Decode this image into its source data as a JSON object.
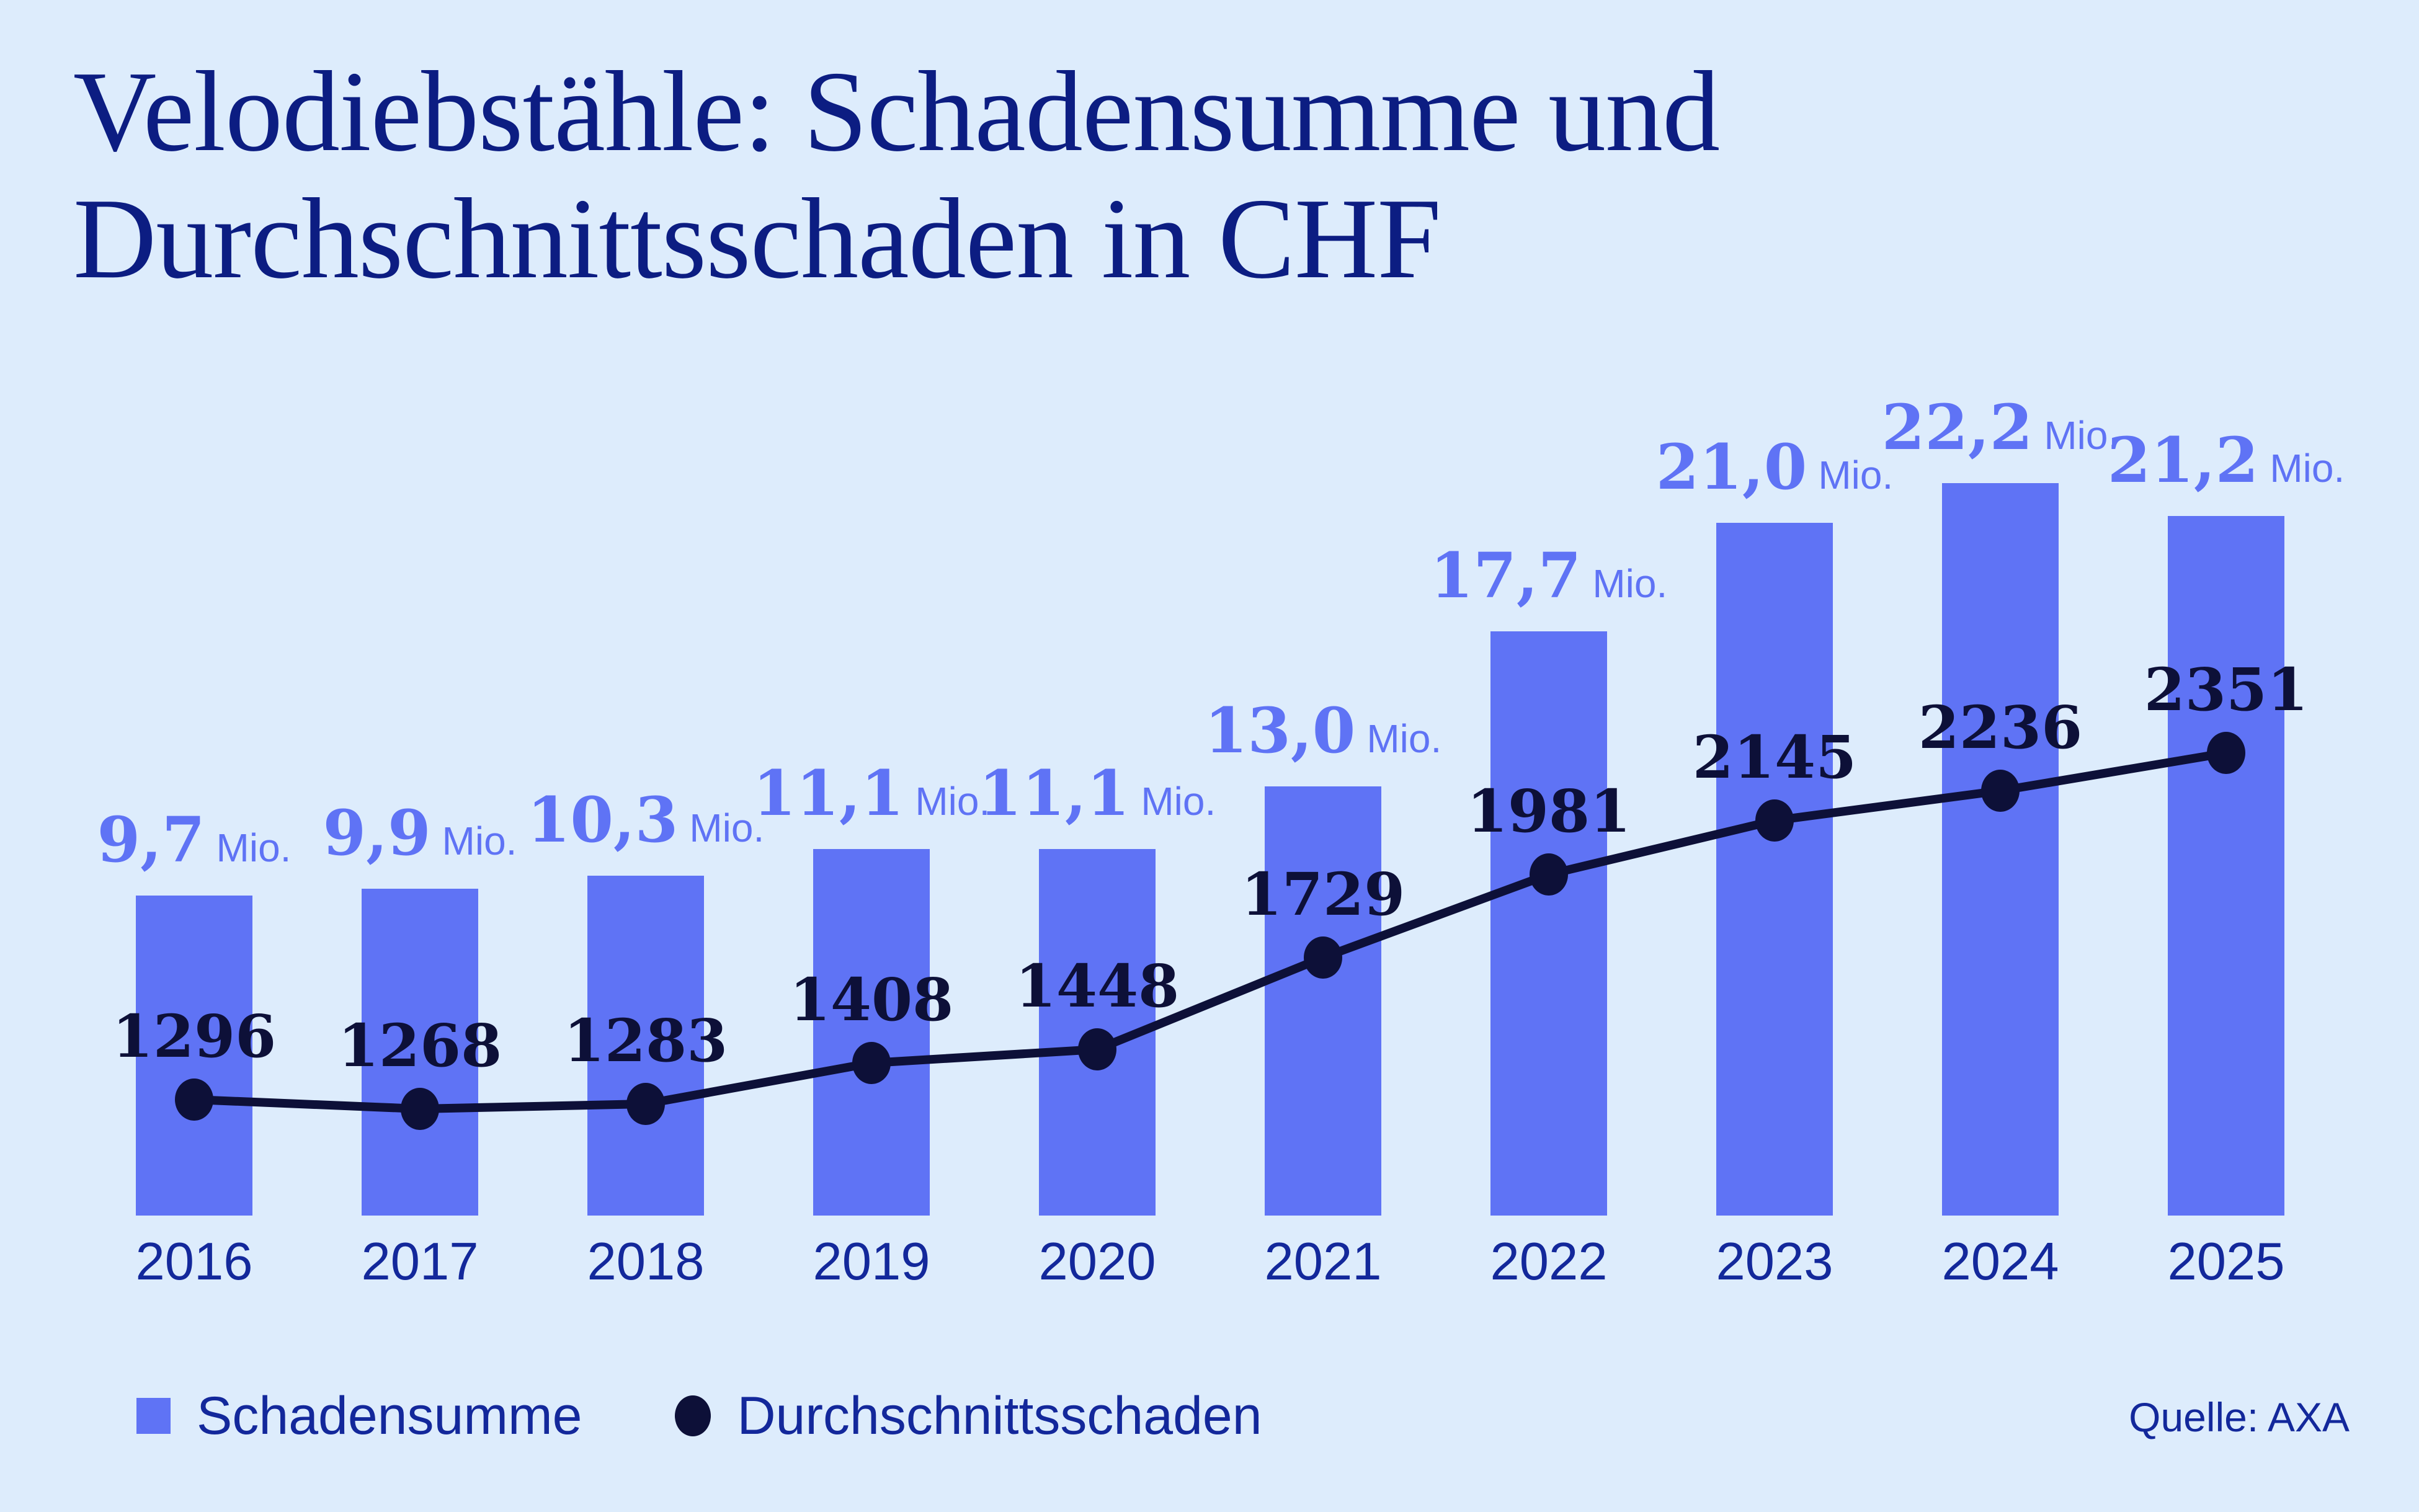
{
  "title": {
    "line1": "Velodiebstähle: Schadensumme und",
    "line2": "Durchschnittsschaden in CHF"
  },
  "source": "Quelle: AXA",
  "legend": {
    "items": [
      {
        "label": "Schadensumme",
        "marker": "bar-swatch"
      },
      {
        "label": "Durchschnittsschaden",
        "marker": "dot"
      }
    ]
  },
  "colors": {
    "background": "#ddecfc",
    "bar": "#5f73f5",
    "line_and_dark_text": "#0d1038",
    "axis_text": "#13289b",
    "title_text": "#0c1d82"
  },
  "chart_data": {
    "type": "bar+line",
    "title": "Velodiebstähle: Schadensumme und Durchschnittsschaden in CHF",
    "categories": [
      "2016",
      "2017",
      "2018",
      "2019",
      "2020",
      "2021",
      "2022",
      "2023",
      "2024",
      "2025"
    ],
    "series": [
      {
        "name": "Schadensumme",
        "type": "bar",
        "unit": "Mio.",
        "unit_position": "suffix",
        "values": [
          9.7,
          9.9,
          10.3,
          11.1,
          11.1,
          13.0,
          17.7,
          21.0,
          22.2,
          21.2
        ],
        "value_labels": [
          "9,7",
          "9,9",
          "10,3",
          "11,1",
          "11,1",
          "13,0",
          "17,7",
          "21,0",
          "22,2",
          "21,2"
        ]
      },
      {
        "name": "Durchschnittsschaden",
        "type": "line",
        "values": [
          1296,
          1268,
          1283,
          1408,
          1448,
          1729,
          1981,
          2145,
          2236,
          2351
        ]
      }
    ],
    "xlabel": "",
    "ylabel": "",
    "grid": false,
    "legend_position": "bottom-left"
  }
}
